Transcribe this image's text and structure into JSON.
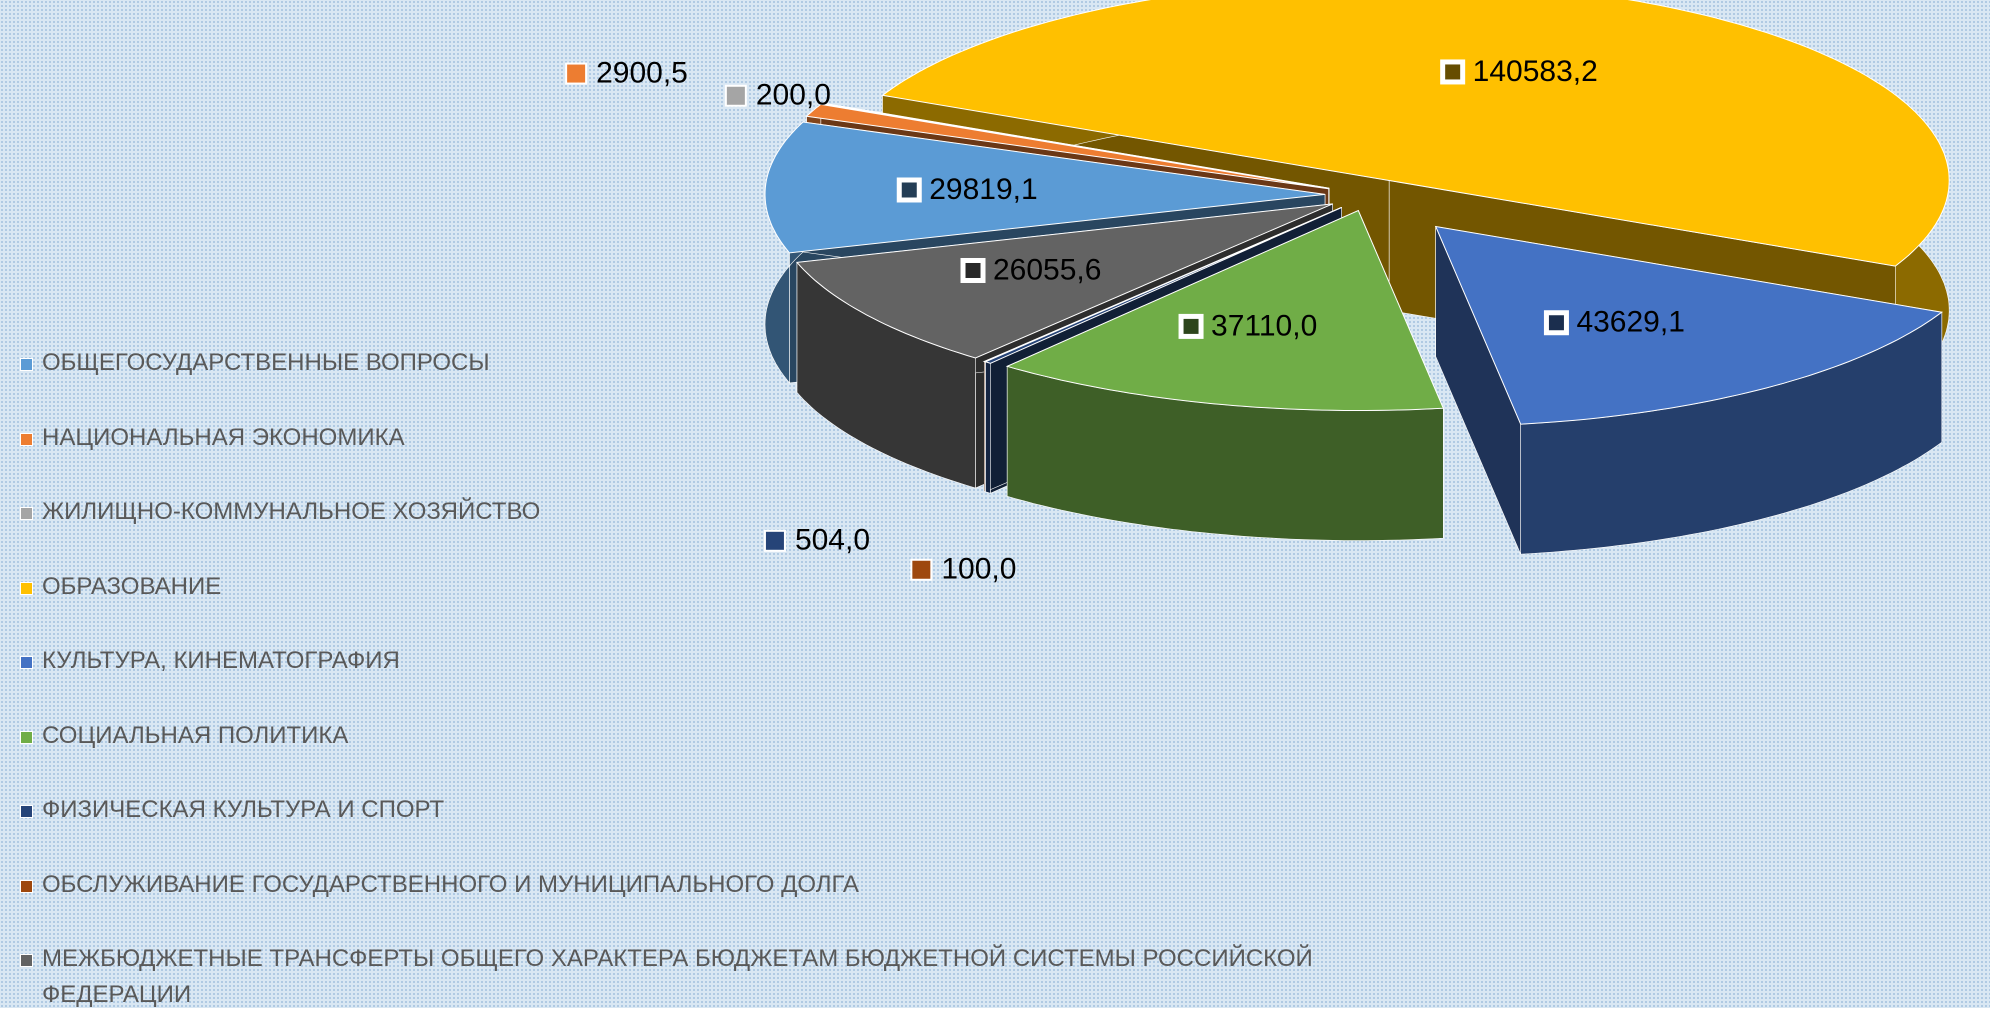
{
  "chart_data": {
    "type": "pie3d",
    "categories": [
      "ОБЩЕГОСУДАРСТВЕННЫЕ ВОПРОСЫ",
      "НАЦИОНАЛЬНАЯ ЭКОНОМИКА",
      "ЖИЛИЩНО-КОММУНАЛЬНОЕ ХОЗЯЙСТВО",
      "ОБРАЗОВАНИЕ",
      "КУЛЬТУРА, КИНЕМАТОГРАФИЯ",
      "СОЦИАЛЬНАЯ ПОЛИТИКА",
      "ФИЗИЧЕСКАЯ КУЛЬТУРА И СПОРТ",
      "ОБСЛУЖИВАНИЕ ГОСУДАРСТВЕННОГО И МУНИЦИПАЛЬНОГО ДОЛГА",
      "МЕЖБЮДЖЕТНЫЕ ТРАНСФЕРТЫ ОБЩЕГО ХАРАКТЕРА БЮДЖЕТАМ БЮДЖЕТНОЙ СИСТЕМЫ РОССИЙСКОЙ ФЕДЕРАЦИИ"
    ],
    "values": [
      29819.1,
      2900.5,
      200.0,
      140583.2,
      43629.1,
      37110.0,
      504.0,
      100.0,
      26055.6
    ],
    "value_labels": [
      "29819,1",
      "2900,5",
      "200,0",
      "140583,2",
      "43629,1",
      "37110,0",
      "504,0",
      "100,0",
      "26055,6"
    ],
    "colors": [
      "#5b9bd5",
      "#ed7d31",
      "#a5a5a5",
      "#ffc000",
      "#4472c4",
      "#70ad47",
      "#264478",
      "#9e480e",
      "#636363"
    ],
    "legend": "left"
  }
}
